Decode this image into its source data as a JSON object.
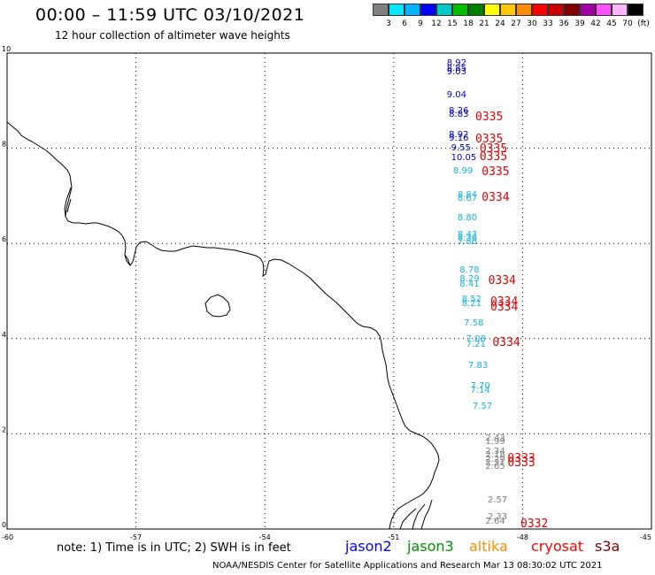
{
  "title": "00:00 – 11:59 UTC 03/10/2021",
  "subtitle": "12 hour collection of altimeter wave heights",
  "legend": {
    "unit": "(ft)",
    "colors": [
      "#808080",
      "#00e8ff",
      "#00b4ff",
      "#0000ff",
      "#00c8c8",
      "#00c000",
      "#008000",
      "#ffff00",
      "#ffc800",
      "#ff8c00",
      "#ff0000",
      "#c80000",
      "#800000",
      "#a000a0",
      "#ff50ff",
      "#ffb4ff",
      "#000000"
    ],
    "ticks": [
      "3",
      "6",
      "9",
      "12",
      "15",
      "18",
      "21",
      "24",
      "27",
      "30",
      "33",
      "36",
      "39",
      "42",
      "45",
      "70"
    ]
  },
  "axes": {
    "y_ticks": [
      "10",
      "8",
      "6",
      "4",
      "2",
      "0"
    ],
    "x_ticks": [
      "-60",
      "-57",
      "-54",
      "-51",
      "-48",
      "-45"
    ]
  },
  "observations": [
    {
      "lon": -49.6,
      "lat": 9.75,
      "value": "8.92",
      "sat": "jason2"
    },
    {
      "lon": -49.6,
      "lat": 9.65,
      "value": "8.85",
      "sat": "jason2"
    },
    {
      "lon": -49.6,
      "lat": 9.57,
      "value": "9.03",
      "sat": "jason2"
    },
    {
      "lon": -49.6,
      "lat": 9.08,
      "value": "9.04",
      "sat": "jason2"
    },
    {
      "lon": -49.55,
      "lat": 8.75,
      "value": "8.26",
      "sat": "jason2"
    },
    {
      "lon": -49.55,
      "lat": 8.68,
      "value": "8.83",
      "sat": "jason2"
    },
    {
      "lon": -49.55,
      "lat": 8.25,
      "value": "8.92",
      "sat": "jason2"
    },
    {
      "lon": -49.55,
      "lat": 8.17,
      "value": "9.16",
      "sat": "jason2"
    },
    {
      "lon": -49.5,
      "lat": 7.97,
      "value": "9.55",
      "sat": "jason2"
    },
    {
      "lon": -49.5,
      "lat": 7.77,
      "value": "10.05",
      "sat": "jason2"
    },
    {
      "lon": -49.45,
      "lat": 7.5,
      "value": "8.99",
      "sat": "jason3"
    },
    {
      "lon": -49.35,
      "lat": 6.98,
      "value": "8.84",
      "sat": "jason3"
    },
    {
      "lon": -49.35,
      "lat": 6.91,
      "value": "8.67",
      "sat": "jason3"
    },
    {
      "lon": -49.35,
      "lat": 6.5,
      "value": "8.80",
      "sat": "jason3"
    },
    {
      "lon": -49.35,
      "lat": 6.15,
      "value": "8.43",
      "sat": "jason3"
    },
    {
      "lon": -49.35,
      "lat": 6.08,
      "value": "8.36",
      "sat": "jason3"
    },
    {
      "lon": -49.35,
      "lat": 6.0,
      "value": "7.86",
      "sat": "jason3"
    },
    {
      "lon": -49.3,
      "lat": 5.4,
      "value": "8.78",
      "sat": "jason3"
    },
    {
      "lon": -49.3,
      "lat": 5.22,
      "value": "8.29",
      "sat": "jason3"
    },
    {
      "lon": -49.3,
      "lat": 5.12,
      "value": "8.41",
      "sat": "jason3"
    },
    {
      "lon": -49.25,
      "lat": 4.8,
      "value": "8.52",
      "sat": "jason3"
    },
    {
      "lon": -49.25,
      "lat": 4.7,
      "value": "8.21",
      "sat": "jason3"
    },
    {
      "lon": -49.2,
      "lat": 4.3,
      "value": "7.58",
      "sat": "jason3"
    },
    {
      "lon": -49.15,
      "lat": 3.95,
      "value": "7.08",
      "sat": "jason3"
    },
    {
      "lon": -49.15,
      "lat": 3.85,
      "value": "7.21",
      "sat": "jason3"
    },
    {
      "lon": -49.1,
      "lat": 3.4,
      "value": "7.83",
      "sat": "jason3"
    },
    {
      "lon": -49.05,
      "lat": 2.98,
      "value": "7.70",
      "sat": "jason3"
    },
    {
      "lon": -49.05,
      "lat": 2.88,
      "value": "7.14",
      "sat": "jason3"
    },
    {
      "lon": -49.0,
      "lat": 2.55,
      "value": "7.57",
      "sat": "jason3"
    },
    {
      "lon": -48.7,
      "lat": 1.88,
      "value": "2.43",
      "sat": "s3a"
    },
    {
      "lon": -48.7,
      "lat": 1.8,
      "value": "1.99",
      "sat": "s3a"
    },
    {
      "lon": -48.7,
      "lat": 1.6,
      "value": "2.34",
      "sat": "s3a"
    },
    {
      "lon": -48.7,
      "lat": 1.52,
      "value": "2.18",
      "sat": "s3a"
    },
    {
      "lon": -48.7,
      "lat": 1.44,
      "value": "2.29",
      "sat": "s3a"
    },
    {
      "lon": -48.7,
      "lat": 1.36,
      "value": "2.31",
      "sat": "s3a"
    },
    {
      "lon": -48.7,
      "lat": 1.28,
      "value": "2.65",
      "sat": "s3a"
    },
    {
      "lon": -48.65,
      "lat": 0.57,
      "value": "2.57",
      "sat": "s3a"
    },
    {
      "lon": -48.65,
      "lat": 0.22,
      "value": "2.33",
      "sat": "s3a"
    },
    {
      "lon": -48.7,
      "lat": 0.13,
      "value": "2.64",
      "sat": "s3a"
    }
  ],
  "pass_labels": [
    {
      "lon": -49.1,
      "lat": 8.65,
      "text": "0335"
    },
    {
      "lon": -49.1,
      "lat": 8.17,
      "text": "0335"
    },
    {
      "lon": -49.0,
      "lat": 7.97,
      "text": "0335"
    },
    {
      "lon": -49.0,
      "lat": 7.8,
      "text": "0335"
    },
    {
      "lon": -48.95,
      "lat": 7.5,
      "text": "0335"
    },
    {
      "lon": -48.95,
      "lat": 6.96,
      "text": "0334"
    },
    {
      "lon": -48.8,
      "lat": 5.2,
      "text": "0334"
    },
    {
      "lon": -48.75,
      "lat": 4.75,
      "text": "0334"
    },
    {
      "lon": -48.75,
      "lat": 4.65,
      "text": "0334"
    },
    {
      "lon": -48.7,
      "lat": 3.9,
      "text": "0334"
    },
    {
      "lon": -48.35,
      "lat": 1.47,
      "text": "0333"
    },
    {
      "lon": -48.35,
      "lat": 1.37,
      "text": "0333"
    },
    {
      "lon": -48.05,
      "lat": 0.1,
      "text": "0332"
    }
  ],
  "note": "note: 1) Time is in UTC; 2) SWH is in feet",
  "satellites": [
    {
      "name": "jason2",
      "color": "#0000ff"
    },
    {
      "name": "jason3",
      "color": "#009000"
    },
    {
      "name": "altika",
      "color": "#ff8c00"
    },
    {
      "name": "cryosat",
      "color": "#ff0000"
    },
    {
      "name": "s3a",
      "color": "#800000"
    }
  ],
  "sat_colors": {
    "jason2": "#0000c8",
    "jason3": "#14b4e6",
    "s3a": "#808080",
    "pass": "#e00000"
  },
  "credit": "NOAA/NESDIS Center for Satellite Applications and Research   Mar 13 08:30:02 UTC 2021"
}
